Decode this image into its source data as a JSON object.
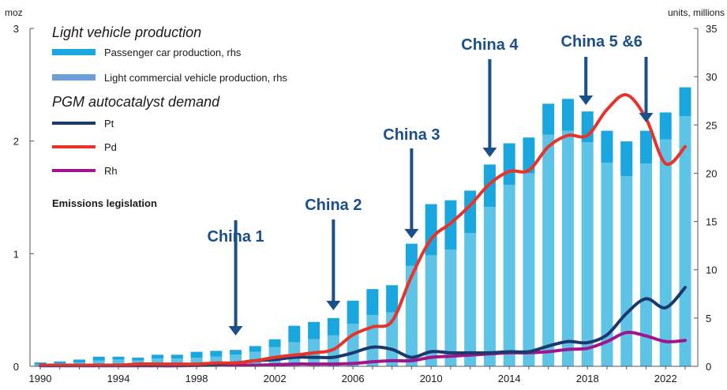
{
  "colors": {
    "passenger": "#1aa7e0",
    "lcv": "#5dc4e8",
    "pt": "#1b3a6b",
    "pd": "#e8332a",
    "rh": "#a2148c",
    "arrow": "#1b4f8a",
    "axis": "#555555"
  },
  "chart_data": {
    "type": "bar+line",
    "left_axis": {
      "unit": "moz",
      "range": [
        0,
        3
      ],
      "ticks": [
        "0",
        "1",
        "2",
        "3"
      ]
    },
    "right_axis": {
      "unit": "units, millions",
      "range": [
        0,
        35
      ],
      "ticks": [
        "0",
        "5",
        "10",
        "15",
        "20",
        "25",
        "30",
        "35"
      ]
    },
    "x_tick_labels": [
      "1990",
      "1994",
      "1998",
      "2002",
      "2006",
      "2010",
      "2014",
      "2018",
      "2022"
    ],
    "legend": {
      "vehicle_heading": "Light vehicle production",
      "passenger_label": "Passenger car production, rhs",
      "lcv_label": "Light commercial vehicle production, rhs",
      "pgm_heading": "PGM autocatalyst demand",
      "pt_label": "Pt",
      "pd_label": "Pd",
      "rh_label": "Rh",
      "emissions_label": "Emissions legislation"
    },
    "years": [
      1990,
      1991,
      1992,
      1993,
      1994,
      1995,
      1996,
      1997,
      1998,
      1999,
      2000,
      2001,
      2002,
      2003,
      2004,
      2005,
      2006,
      2007,
      2008,
      2009,
      2010,
      2011,
      2012,
      2013,
      2014,
      2015,
      2016,
      2017,
      2018,
      2019,
      2020,
      2021,
      2022,
      2023
    ],
    "bars": {
      "passenger_car": [
        0.2,
        0.3,
        0.4,
        0.6,
        0.7,
        0.6,
        0.8,
        0.8,
        0.9,
        1.0,
        1.2,
        1.5,
        2.0,
        2.5,
        2.8,
        3.2,
        4.4,
        5.3,
        5.6,
        10.4,
        11.5,
        12.1,
        13.8,
        16.5,
        18.8,
        20.0,
        24.0,
        24.4,
        23.2,
        21.1,
        19.7,
        21.0,
        23.5,
        25.9
      ],
      "light_commercial": [
        0.2,
        0.2,
        0.3,
        0.4,
        0.3,
        0.3,
        0.4,
        0.4,
        0.6,
        0.6,
        0.5,
        0.6,
        0.8,
        1.7,
        1.8,
        1.8,
        2.4,
        2.7,
        2.8,
        2.3,
        5.3,
        5.1,
        4.4,
        4.4,
        4.3,
        3.7,
        3.2,
        3.3,
        3.2,
        3.3,
        3.6,
        3.4,
        2.8,
        3.0
      ]
    },
    "series": [
      {
        "name": "Pt",
        "values": [
          0.01,
          0.01,
          0.01,
          0.01,
          0.01,
          0.01,
          0.01,
          0.01,
          0.01,
          0.02,
          0.03,
          0.05,
          0.06,
          0.08,
          0.08,
          0.08,
          0.12,
          0.17,
          0.15,
          0.08,
          0.13,
          0.12,
          0.12,
          0.12,
          0.13,
          0.13,
          0.18,
          0.22,
          0.21,
          0.28,
          0.47,
          0.6,
          0.52,
          0.7
        ]
      },
      {
        "name": "Pd",
        "values": [
          0.01,
          0.01,
          0.01,
          0.01,
          0.01,
          0.02,
          0.02,
          0.02,
          0.02,
          0.03,
          0.03,
          0.05,
          0.08,
          0.1,
          0.12,
          0.15,
          0.28,
          0.35,
          0.4,
          0.8,
          1.13,
          1.27,
          1.43,
          1.62,
          1.73,
          1.74,
          1.95,
          2.05,
          2.05,
          2.28,
          2.41,
          2.2,
          1.8,
          1.95
        ]
      },
      {
        "name": "Rh",
        "values": [
          0.005,
          0.005,
          0.005,
          0.005,
          0.005,
          0.005,
          0.005,
          0.005,
          0.008,
          0.01,
          0.01,
          0.01,
          0.015,
          0.02,
          0.02,
          0.02,
          0.025,
          0.04,
          0.05,
          0.05,
          0.08,
          0.09,
          0.1,
          0.11,
          0.12,
          0.12,
          0.13,
          0.15,
          0.16,
          0.22,
          0.3,
          0.27,
          0.22,
          0.23
        ]
      }
    ],
    "annotations": [
      {
        "label": "China 1",
        "year": 2000
      },
      {
        "label": "China 2",
        "year": 2005
      },
      {
        "label": "China 3",
        "year": 2009
      },
      {
        "label": "China 4",
        "year": 2013
      },
      {
        "label": "China 5 &6",
        "year": 2018
      },
      {
        "label": "",
        "year": 2021
      }
    ]
  }
}
